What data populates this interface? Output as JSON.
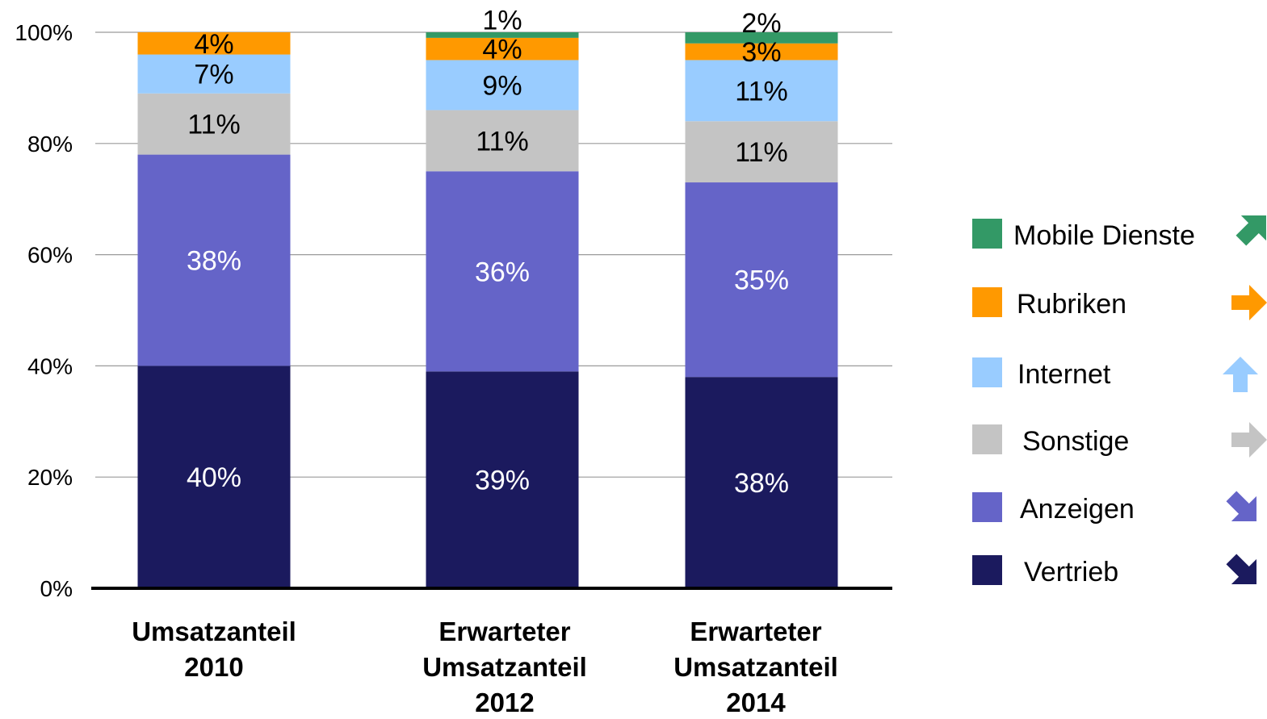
{
  "chart_data": {
    "type": "bar",
    "stacked": true,
    "percent": true,
    "categories": [
      [
        "Umsatzanteil",
        "2010"
      ],
      [
        "Erwarteter",
        "Umsatzanteil",
        "2012"
      ],
      [
        "Erwarteter",
        "Umsatzanteil",
        "2014"
      ]
    ],
    "series": [
      {
        "name": "Vertrieb",
        "color": "#1b1a5e",
        "label_color": "#ffffff",
        "trend": "down-right",
        "values": [
          40,
          39,
          38
        ]
      },
      {
        "name": "Anzeigen",
        "color": "#6564c8",
        "label_color": "#ffffff",
        "trend": "down-right",
        "values": [
          38,
          36,
          35
        ]
      },
      {
        "name": "Sonstige",
        "color": "#c4c4c4",
        "label_color": "#000000",
        "trend": "right",
        "values": [
          11,
          11,
          11
        ]
      },
      {
        "name": "Internet",
        "color": "#99ccff",
        "label_color": "#000000",
        "trend": "up",
        "values": [
          7,
          9,
          11
        ]
      },
      {
        "name": "Rubriken",
        "color": "#ff9900",
        "label_color": "#000000",
        "trend": "right",
        "values": [
          4,
          4,
          3
        ]
      },
      {
        "name": "Mobile Dienste",
        "color": "#339966",
        "label_color": "#000000",
        "trend": "up-right",
        "values": [
          0,
          1,
          2
        ]
      }
    ],
    "data_labels": [
      [
        "40%",
        "38%",
        "11%",
        "7%",
        "4%",
        ""
      ],
      [
        "39%",
        "36%",
        "11%",
        "9%",
        "4%",
        "1%"
      ],
      [
        "38%",
        "35%",
        "11%",
        "11%",
        "3%",
        "2%"
      ]
    ],
    "y_ticks": [
      "0%",
      "20%",
      "40%",
      "60%",
      "80%",
      "100%"
    ],
    "ylim": [
      0,
      100
    ],
    "grid": true,
    "legend_position": "right",
    "title": "",
    "xlabel": "",
    "ylabel": ""
  }
}
